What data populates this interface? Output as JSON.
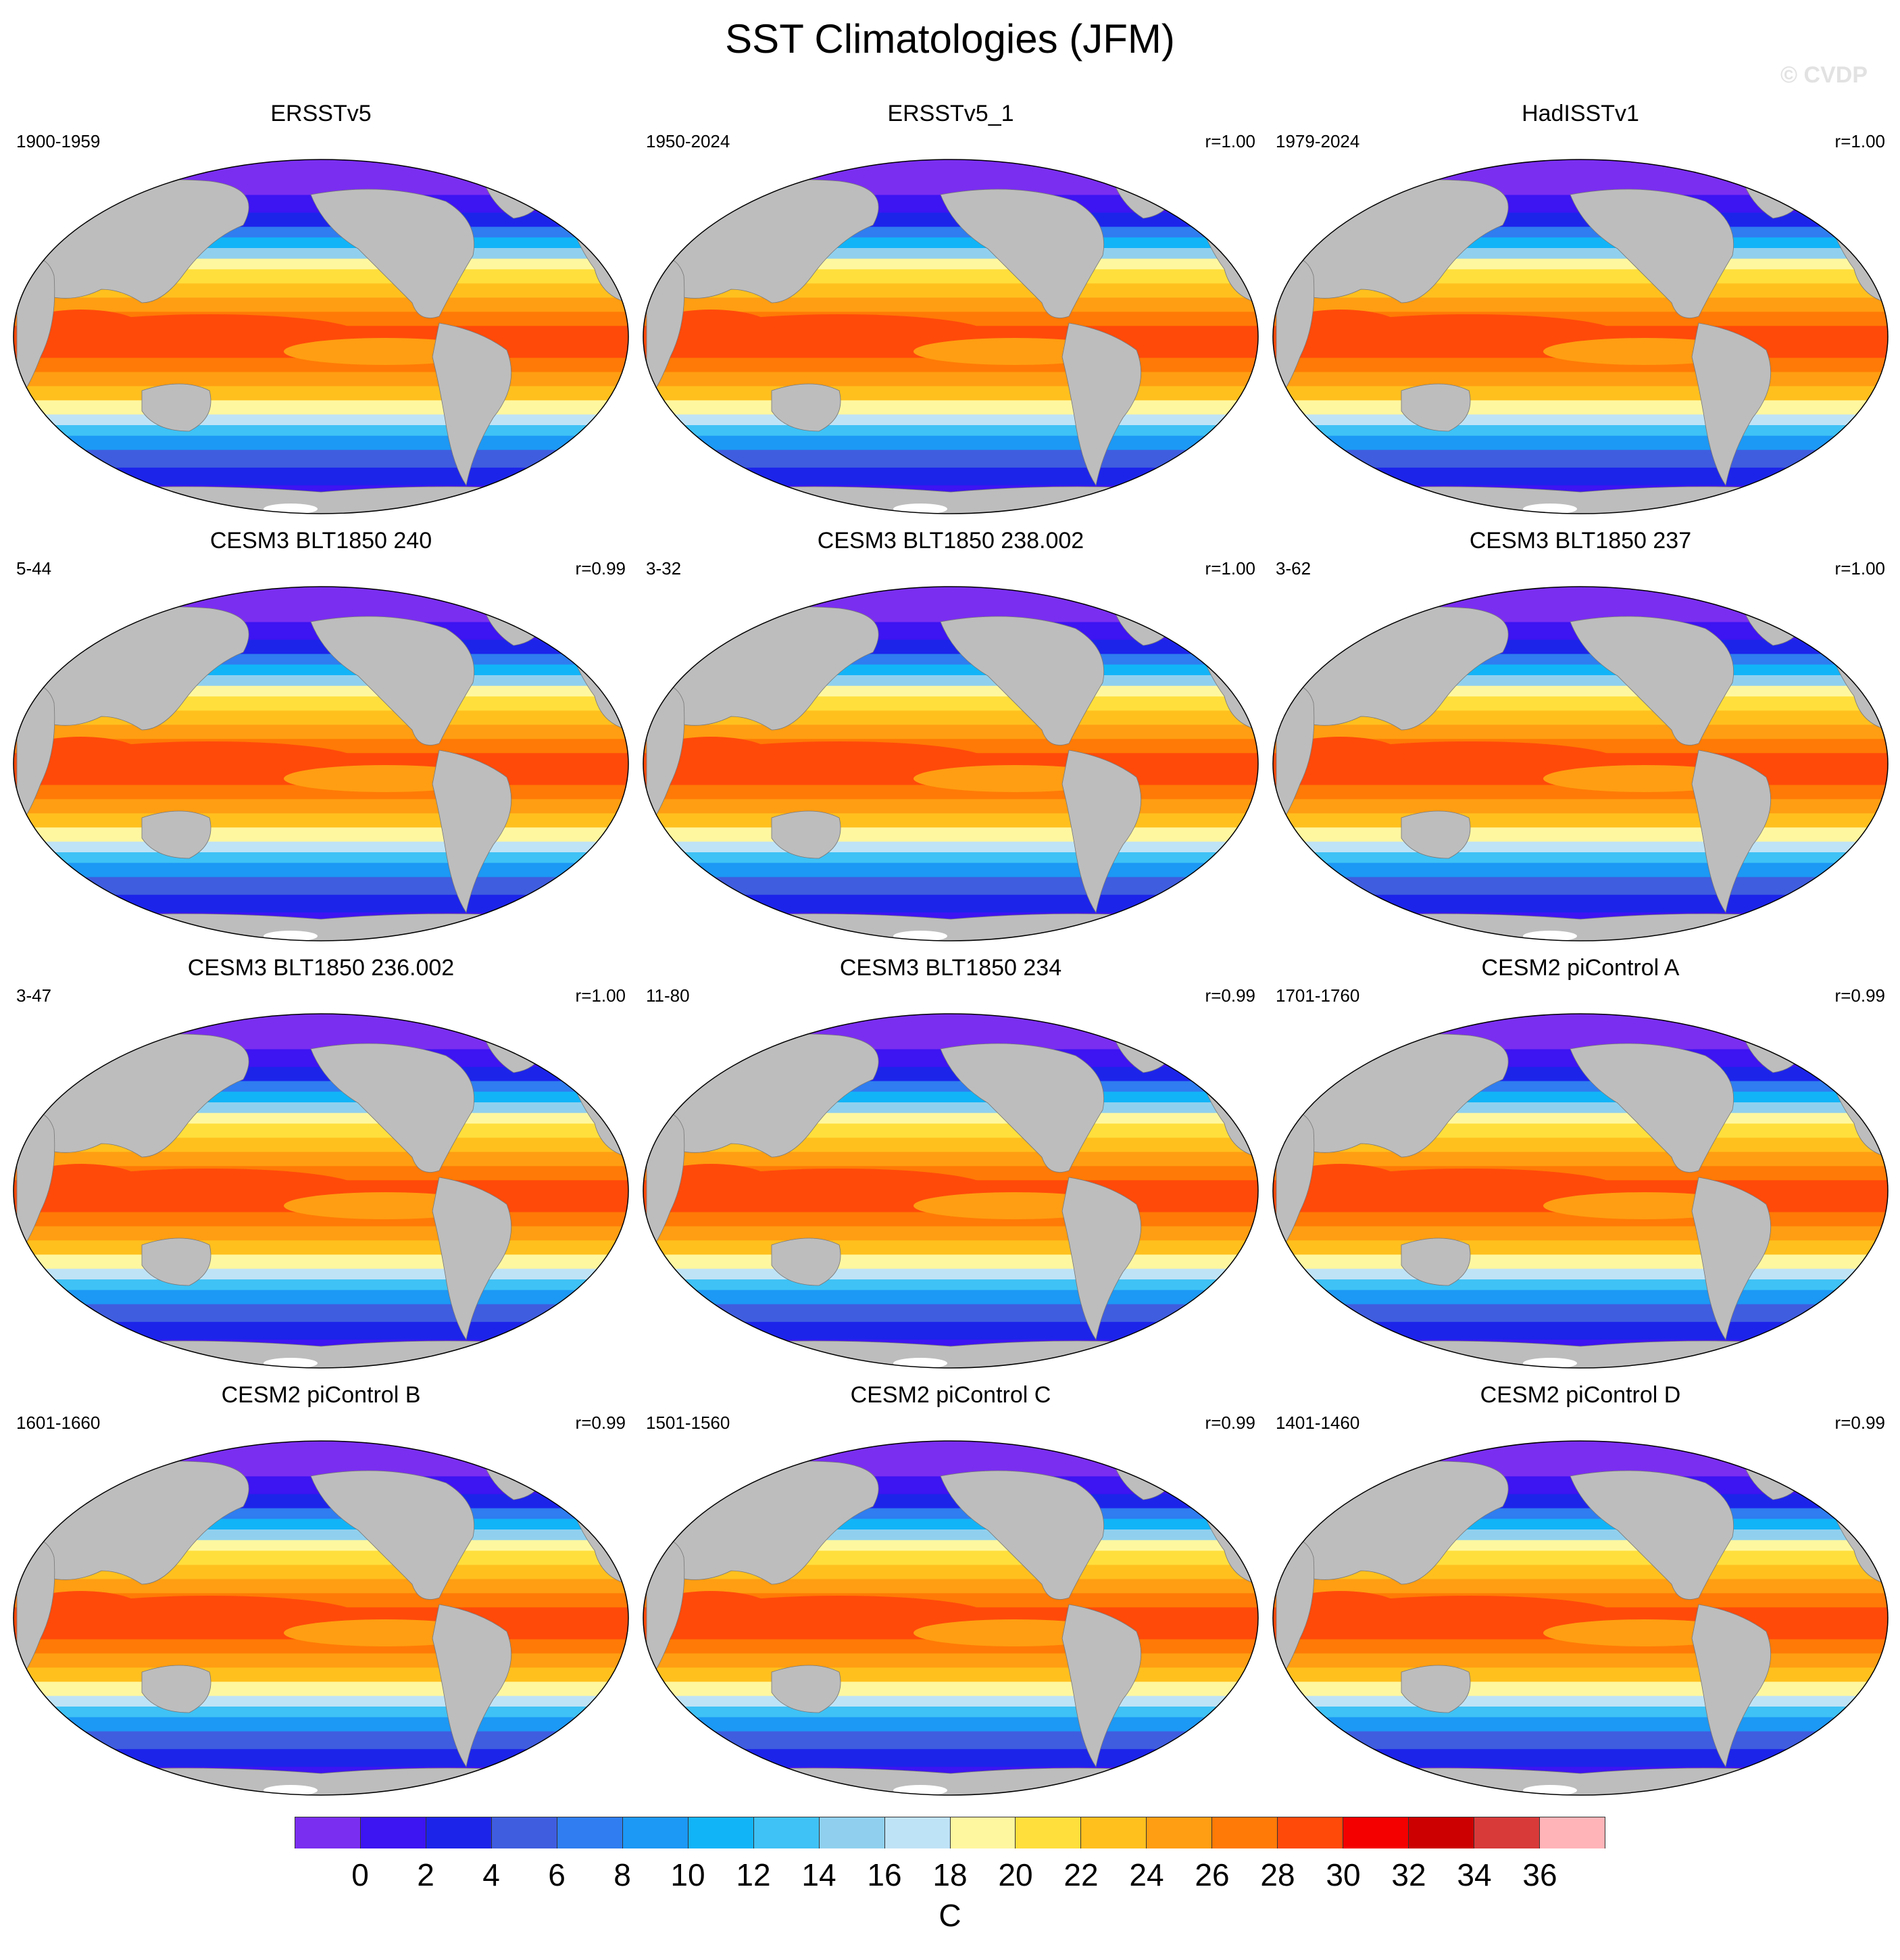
{
  "title": "SST Climatologies (JFM)",
  "watermark": "© CVDP",
  "panels": [
    {
      "title": "ERSSTv5",
      "period": "1900-1959",
      "corr": ""
    },
    {
      "title": "ERSSTv5_1",
      "period": "1950-2024",
      "corr": "r=1.00"
    },
    {
      "title": "HadISSTv1",
      "period": "1979-2024",
      "corr": "r=1.00"
    },
    {
      "title": "CESM3 BLT1850 240",
      "period": "5-44",
      "corr": "r=0.99"
    },
    {
      "title": "CESM3 BLT1850 238.002",
      "period": "3-32",
      "corr": "r=1.00"
    },
    {
      "title": "CESM3 BLT1850 237",
      "period": "3-62",
      "corr": "r=1.00"
    },
    {
      "title": "CESM3 BLT1850 236.002",
      "period": "3-47",
      "corr": "r=1.00"
    },
    {
      "title": "CESM3 BLT1850 234",
      "period": "11-80",
      "corr": "r=0.99"
    },
    {
      "title": "CESM2 piControl A",
      "period": "1701-1760",
      "corr": "r=0.99"
    },
    {
      "title": "CESM2 piControl B",
      "period": "1601-1660",
      "corr": "r=0.99"
    },
    {
      "title": "CESM2 piControl C",
      "period": "1501-1560",
      "corr": "r=0.99"
    },
    {
      "title": "CESM2 piControl D",
      "period": "1401-1460",
      "corr": "r=0.99"
    }
  ],
  "colorbar": {
    "units": "C",
    "labels": [
      "0",
      "2",
      "4",
      "6",
      "8",
      "10",
      "12",
      "14",
      "16",
      "18",
      "20",
      "22",
      "24",
      "26",
      "28",
      "30",
      "32",
      "34",
      "36"
    ],
    "colors": [
      "#7a2ef0",
      "#3d14f2",
      "#1c24ea",
      "#3f5ddf",
      "#2f7df0",
      "#1c98f5",
      "#12b4f8",
      "#3fc2f5",
      "#90d0ee",
      "#bfe3f6",
      "#fff7a0",
      "#ffdf3c",
      "#ffc01e",
      "#ff9e12",
      "#ff7a06",
      "#ff4a0a",
      "#f40000",
      "#cc0000",
      "#d83a3a",
      "#ffb4b8"
    ]
  },
  "style": {
    "land_color": "#bdbdbd",
    "ice_color": "#ffffff",
    "map_outline": "#000000"
  }
}
